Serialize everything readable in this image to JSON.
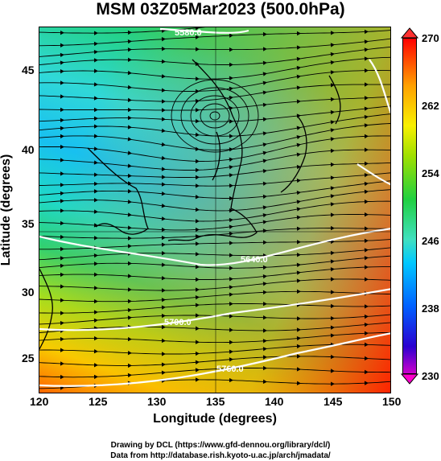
{
  "title": "MSM 03Z05Mar2023 (500.0hPa)",
  "xlabel": "Longitude (degrees)",
  "ylabel": "Latitude  (degrees)",
  "x_ticks": [
    "120",
    "125",
    "130",
    "135",
    "140",
    "145",
    "150"
  ],
  "y_ticks": [
    "45",
    "40",
    "35",
    "30",
    "25"
  ],
  "colorbar_ticks": [
    "270",
    "262",
    "254",
    "246",
    "238",
    "230"
  ],
  "contour_labels": [
    "5580.0",
    "5640.0",
    "5700.0",
    "5760.0"
  ],
  "credit_line1": "Drawing by DCL (https://www.gfd-dennou.org/library/dcl/)",
  "credit_line2": "Data from http://database.rish.kyoto-u.ac.jp/arch/jmadata/",
  "chart_data": {
    "type": "heatmap",
    "title": "MSM 03Z05Mar2023 (500.0hPa)",
    "xlabel": "Longitude (degrees)",
    "ylabel": "Latitude  (degrees)",
    "xlim": [
      120,
      150
    ],
    "ylim": [
      22.4,
      47.6
    ],
    "colorbar_range": [
      230,
      270
    ],
    "colorbar_ticks": [
      230,
      238,
      246,
      254,
      262,
      270
    ],
    "overlays": [
      "streamlines",
      "geopotential height contours",
      "coastlines"
    ],
    "contour_values": [
      5580,
      5640,
      5700,
      5760
    ]
  }
}
